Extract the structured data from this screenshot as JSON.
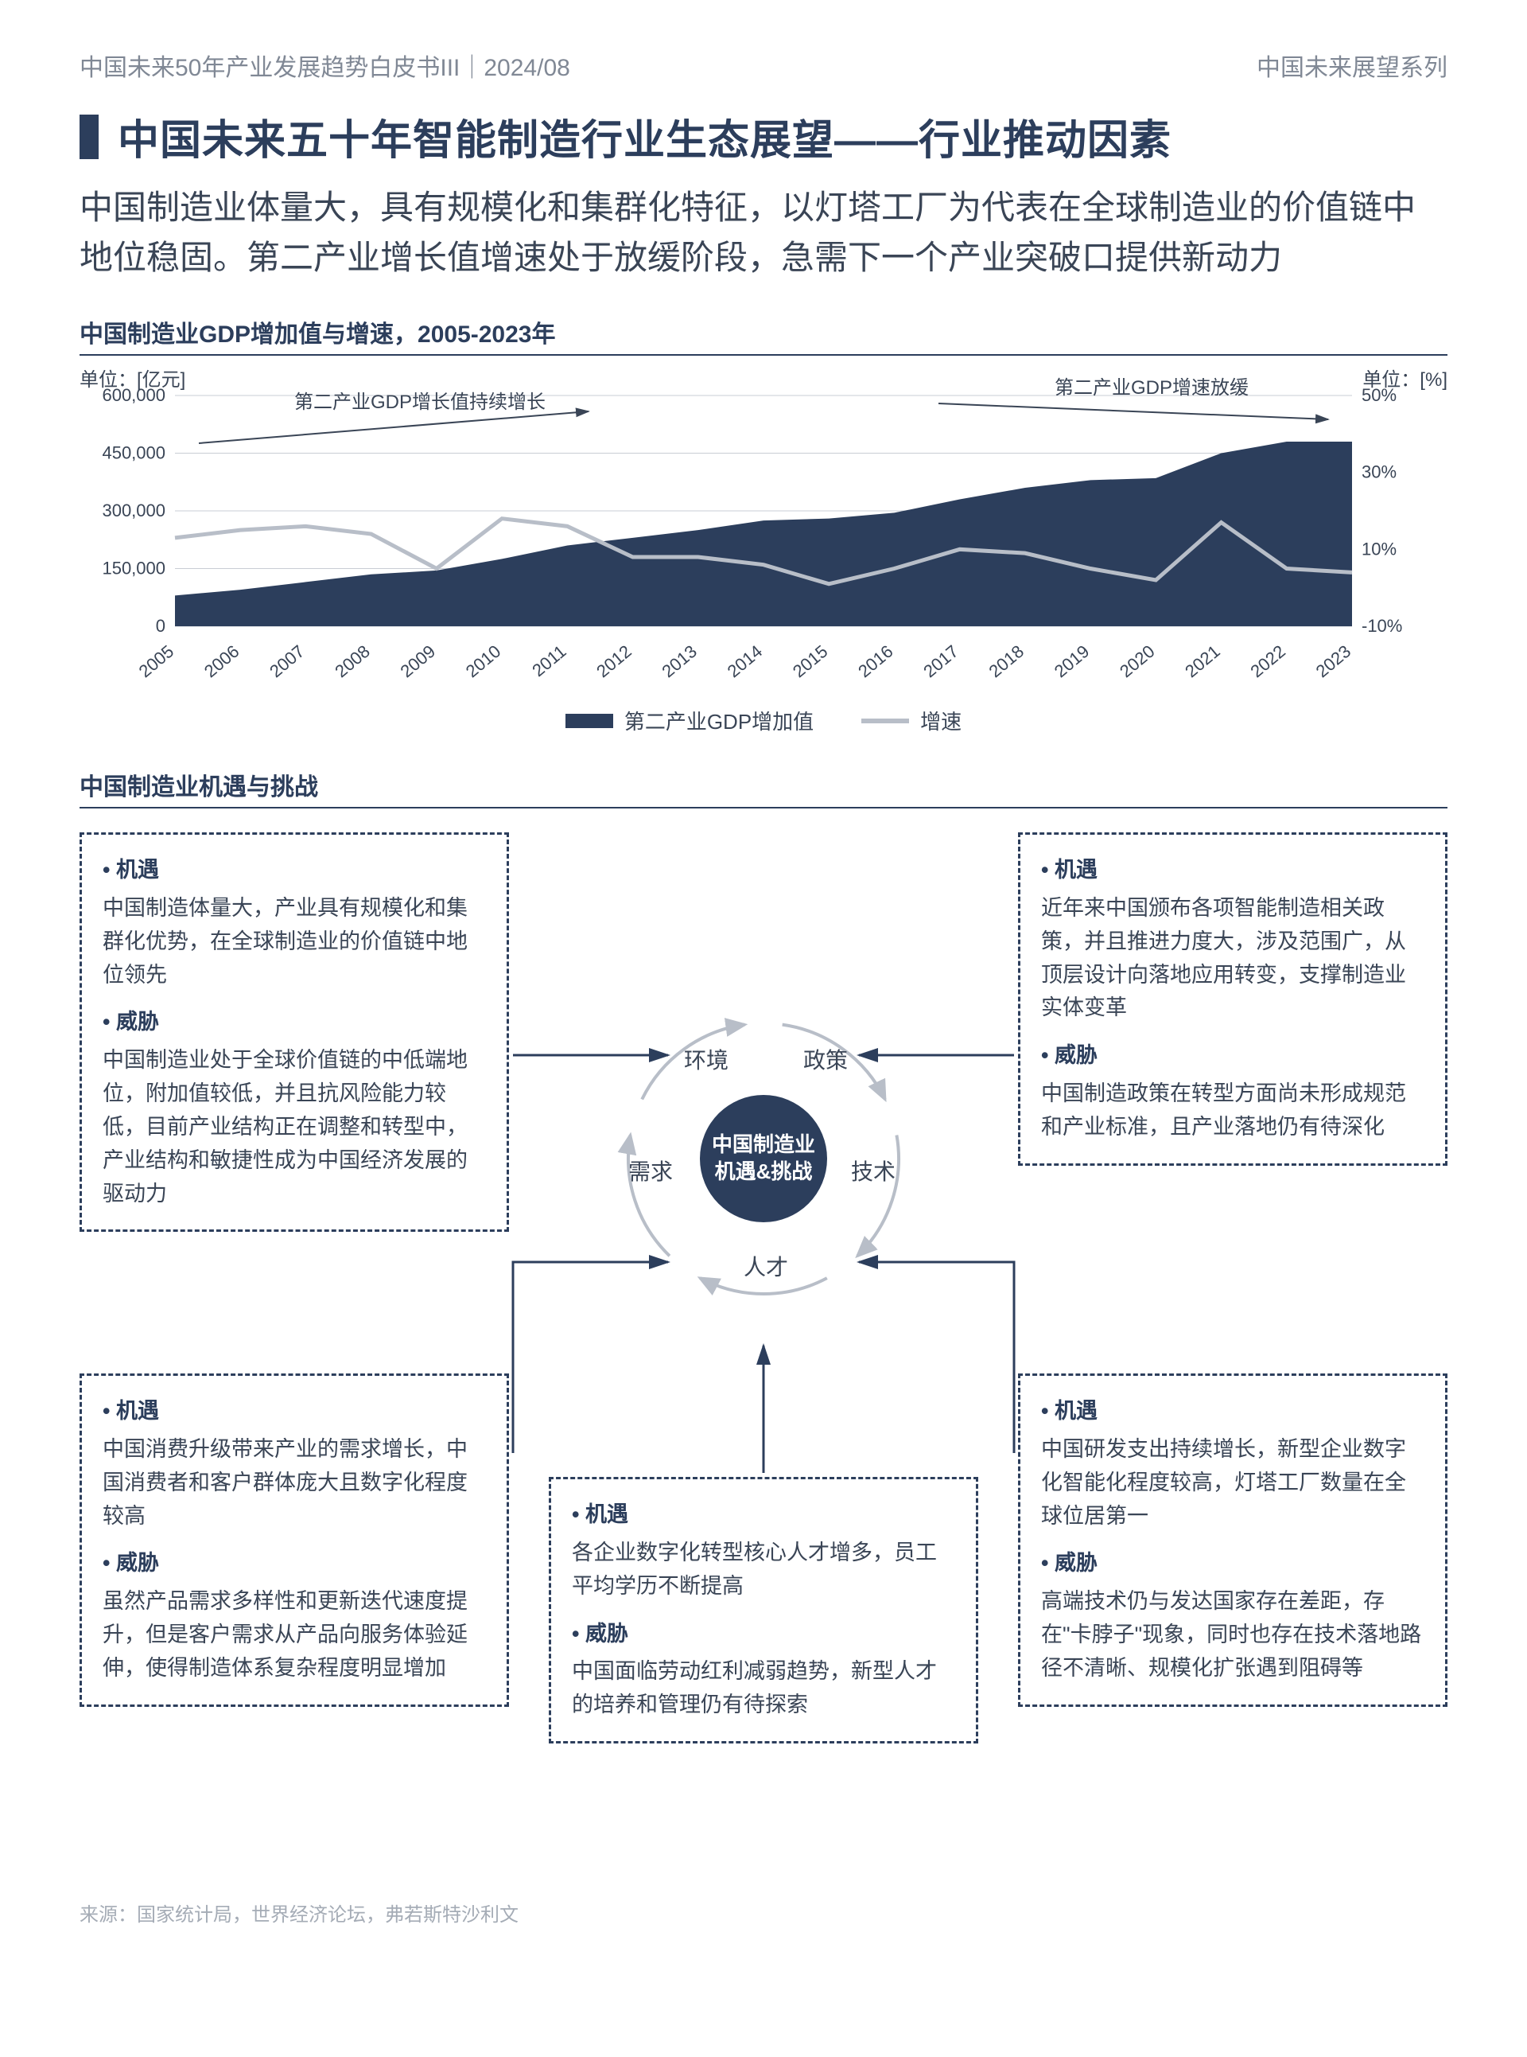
{
  "header": {
    "left": "中国未来50年产业发展趋势白皮书III｜2024/08",
    "right": "中国未来展望系列"
  },
  "title": "中国未来五十年智能制造行业生态展望——行业推动因素",
  "subtitle": "中国制造业体量大，具有规模化和集群化特征，以灯塔工厂为代表在全球制造业的价值链中地位稳固。第二产业增长值增速处于放缓阶段，急需下一个产业突破口提供新动力",
  "chart": {
    "title": "中国制造业GDP增加值与增速，2005-2023年",
    "unit_left": "单位：[亿元]",
    "unit_right": "单位：[%]",
    "years": [
      "2005",
      "2006",
      "2007",
      "2008",
      "2009",
      "2010",
      "2011",
      "2012",
      "2013",
      "2014",
      "2015",
      "2016",
      "2017",
      "2018",
      "2019",
      "2020",
      "2021",
      "2022",
      "2023"
    ],
    "y_left_ticks": [
      "0",
      "150,000",
      "300,000",
      "450,000",
      "600,000"
    ],
    "y_left_max": 600000,
    "y_right_ticks": [
      "-10%",
      "10%",
      "30%",
      "50%"
    ],
    "y_right_min": -10,
    "y_right_max": 50,
    "area_values": [
      80000,
      95000,
      115000,
      135000,
      145000,
      175000,
      210000,
      230000,
      250000,
      275000,
      280000,
      295000,
      330000,
      360000,
      380000,
      385000,
      450000,
      480000,
      480000
    ],
    "line_values": [
      13,
      15,
      16,
      14,
      5,
      18,
      16,
      8,
      8,
      6,
      1,
      5,
      10,
      9,
      5,
      2,
      17,
      5,
      4
    ],
    "area_color": "#2c3e5c",
    "line_color": "#b8bec8",
    "grid_color": "#c9cdd4",
    "label_fontsize": 22,
    "legend": {
      "area": "第二产业GDP增加值",
      "line": "增速"
    },
    "annotation_left": "第二产业GDP增长值持续增长",
    "annotation_right": "第二产业GDP增速放缓"
  },
  "section2_title": "中国制造业机遇与挑战",
  "hub": {
    "center": "中国制造业\n机遇&挑战",
    "petals": [
      "环境",
      "政策",
      "需求",
      "技术",
      "人才"
    ],
    "ring_color": "#b8bec8",
    "center_color": "#2c3e5c"
  },
  "boxes": {
    "top_left": {
      "opp_head": "机遇",
      "opp_body": "中国制造体量大，产业具有规模化和集群化优势，在全球制造业的价值链中地位领先",
      "thr_head": "威胁",
      "thr_body": "中国制造业处于全球价值链的中低端地位，附加值较低，并且抗风险能力较低，目前产业结构正在调整和转型中，产业结构和敏捷性成为中国经济发展的驱动力"
    },
    "top_right": {
      "opp_head": "机遇",
      "opp_body": "近年来中国颁布各项智能制造相关政策，并且推进力度大，涉及范围广，从顶层设计向落地应用转变，支撑制造业实体变革",
      "thr_head": "威胁",
      "thr_body": "中国制造政策在转型方面尚未形成规范和产业标准，且产业落地仍有待深化"
    },
    "bottom_left": {
      "opp_head": "机遇",
      "opp_body": "中国消费升级带来产业的需求增长，中国消费者和客户群体庞大且数字化程度较高",
      "thr_head": "威胁",
      "thr_body": "虽然产品需求多样性和更新迭代速度提升，但是客户需求从产品向服务体验延伸，使得制造体系复杂程度明显增加"
    },
    "bottom_center": {
      "opp_head": "机遇",
      "opp_body": "各企业数字化转型核心人才增多，员工平均学历不断提高",
      "thr_head": "威胁",
      "thr_body": "中国面临劳动红利减弱趋势，新型人才的培养和管理仍有待探索"
    },
    "bottom_right": {
      "opp_head": "机遇",
      "opp_body": "中国研发支出持续增长，新型企业数字化智能化程度较高，灯塔工厂数量在全球位居第一",
      "thr_head": "威胁",
      "thr_body": "高端技术仍与发达国家存在差距，存在\"卡脖子\"现象，同时也存在技术落地路径不清晰、规模化扩张遇到阻碍等"
    }
  },
  "footer": "来源：国家统计局，世界经济论坛，弗若斯特沙利文"
}
